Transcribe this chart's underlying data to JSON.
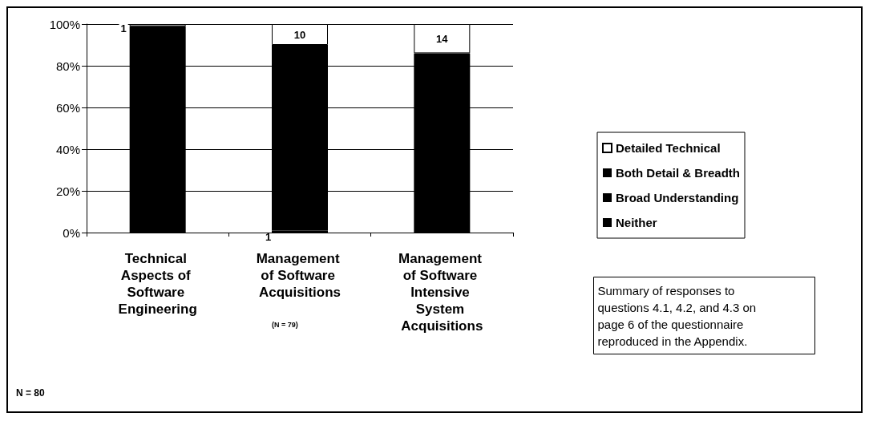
{
  "chart_data": {
    "type": "bar",
    "stacked": true,
    "categories": [
      "Technical Aspects of Software Engineering",
      "Management of Software Acquisitions",
      "Management of Software Intensive System Acquisitions"
    ],
    "series": [
      {
        "name": "Neither",
        "color": "#000000",
        "values": [
          null,
          1,
          null
        ],
        "value_labels": [
          null,
          "1",
          null
        ]
      },
      {
        "name": "Broad Understanding",
        "color": "#000000",
        "values": [
          null,
          null,
          null
        ]
      },
      {
        "name": "Both Detail & Breadth",
        "color": "#000000",
        "values": [
          99,
          89,
          86
        ]
      },
      {
        "name": "Detailed Technical",
        "color": "#ffffff",
        "values": [
          1,
          10,
          14
        ],
        "value_labels": [
          "1",
          "10",
          "14"
        ]
      }
    ],
    "ylim": [
      0,
      100
    ],
    "yticks": [
      {
        "value": 0,
        "label": "0%"
      },
      {
        "value": 20,
        "label": "20%"
      },
      {
        "value": 40,
        "label": "40%"
      },
      {
        "value": 60,
        "label": "60%"
      },
      {
        "value": 80,
        "label": "80%"
      },
      {
        "value": 100,
        "label": "100%"
      }
    ],
    "grid": "y",
    "legend": "right",
    "annotations": [
      "(N = 79)",
      "Summary of responses to questions 4.1, 4.2, and 4.3 on page 6 of the questionnaire reproduced in the Appendix.",
      "N = 80"
    ]
  }
}
